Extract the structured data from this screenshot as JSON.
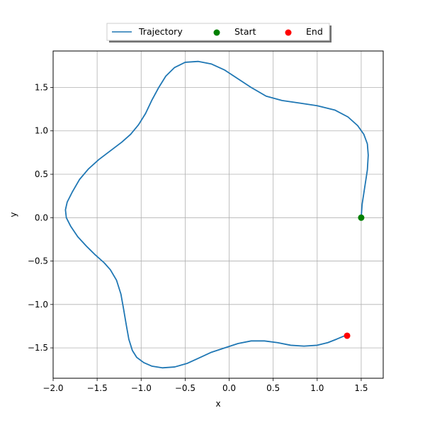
{
  "chart_data": {
    "type": "line",
    "xlabel": "x",
    "ylabel": "y",
    "xlim": [
      -2.0,
      1.75
    ],
    "ylim": [
      -1.85,
      1.92
    ],
    "xticks": [
      -2.0,
      -1.5,
      -1.0,
      -0.5,
      0.0,
      0.5,
      1.0,
      1.5
    ],
    "xtick_labels": [
      "−2.0",
      "−1.5",
      "−1.0",
      "−0.5",
      "0.0",
      "0.5",
      "1.0",
      "1.5"
    ],
    "yticks": [
      -1.5,
      -1.0,
      -0.5,
      0.0,
      0.5,
      1.0,
      1.5
    ],
    "ytick_labels": [
      "−1.5",
      "−1.0",
      "−0.5",
      "0.0",
      "0.5",
      "1.0",
      "1.5"
    ],
    "grid": true,
    "legend_position": "top-center, above plot",
    "series": [
      {
        "name": "Trajectory",
        "kind": "line",
        "color": "#1f77b4",
        "x": [
          1.5,
          1.51,
          1.54,
          1.57,
          1.58,
          1.57,
          1.53,
          1.46,
          1.35,
          1.2,
          1.0,
          0.8,
          0.6,
          0.42,
          0.25,
          0.1,
          -0.05,
          -0.2,
          -0.35,
          -0.5,
          -0.62,
          -0.72,
          -0.8,
          -0.88,
          -0.95,
          -1.03,
          -1.12,
          -1.22,
          -1.35,
          -1.48,
          -1.6,
          -1.7,
          -1.78,
          -1.84,
          -1.86,
          -1.85,
          -1.8,
          -1.72,
          -1.62,
          -1.52,
          -1.42,
          -1.35,
          -1.28,
          -1.23,
          -1.2,
          -1.17,
          -1.14,
          -1.1,
          -1.05,
          -0.97,
          -0.88,
          -0.76,
          -0.62,
          -0.48,
          -0.35,
          -0.2,
          -0.05,
          0.1,
          0.25,
          0.4,
          0.55,
          0.7,
          0.85,
          1.0,
          1.12,
          1.22,
          1.29,
          1.34
        ],
        "y": [
          0.0,
          0.15,
          0.35,
          0.55,
          0.72,
          0.85,
          0.96,
          1.06,
          1.16,
          1.24,
          1.29,
          1.32,
          1.35,
          1.4,
          1.5,
          1.6,
          1.7,
          1.77,
          1.8,
          1.79,
          1.73,
          1.63,
          1.5,
          1.35,
          1.2,
          1.07,
          0.96,
          0.87,
          0.77,
          0.67,
          0.56,
          0.44,
          0.3,
          0.18,
          0.09,
          0.0,
          -0.1,
          -0.22,
          -0.33,
          -0.43,
          -0.52,
          -0.6,
          -0.72,
          -0.88,
          -1.05,
          -1.23,
          -1.4,
          -1.53,
          -1.61,
          -1.67,
          -1.71,
          -1.73,
          -1.72,
          -1.68,
          -1.62,
          -1.55,
          -1.5,
          -1.45,
          -1.42,
          -1.42,
          -1.44,
          -1.47,
          -1.48,
          -1.47,
          -1.44,
          -1.4,
          -1.37,
          -1.35
        ]
      },
      {
        "name": "Start",
        "kind": "point",
        "color": "#008000",
        "x": [
          1.5
        ],
        "y": [
          0.0
        ]
      },
      {
        "name": "End",
        "kind": "point",
        "color": "#ff0000",
        "x": [
          1.34
        ],
        "y": [
          -1.36
        ]
      }
    ]
  }
}
